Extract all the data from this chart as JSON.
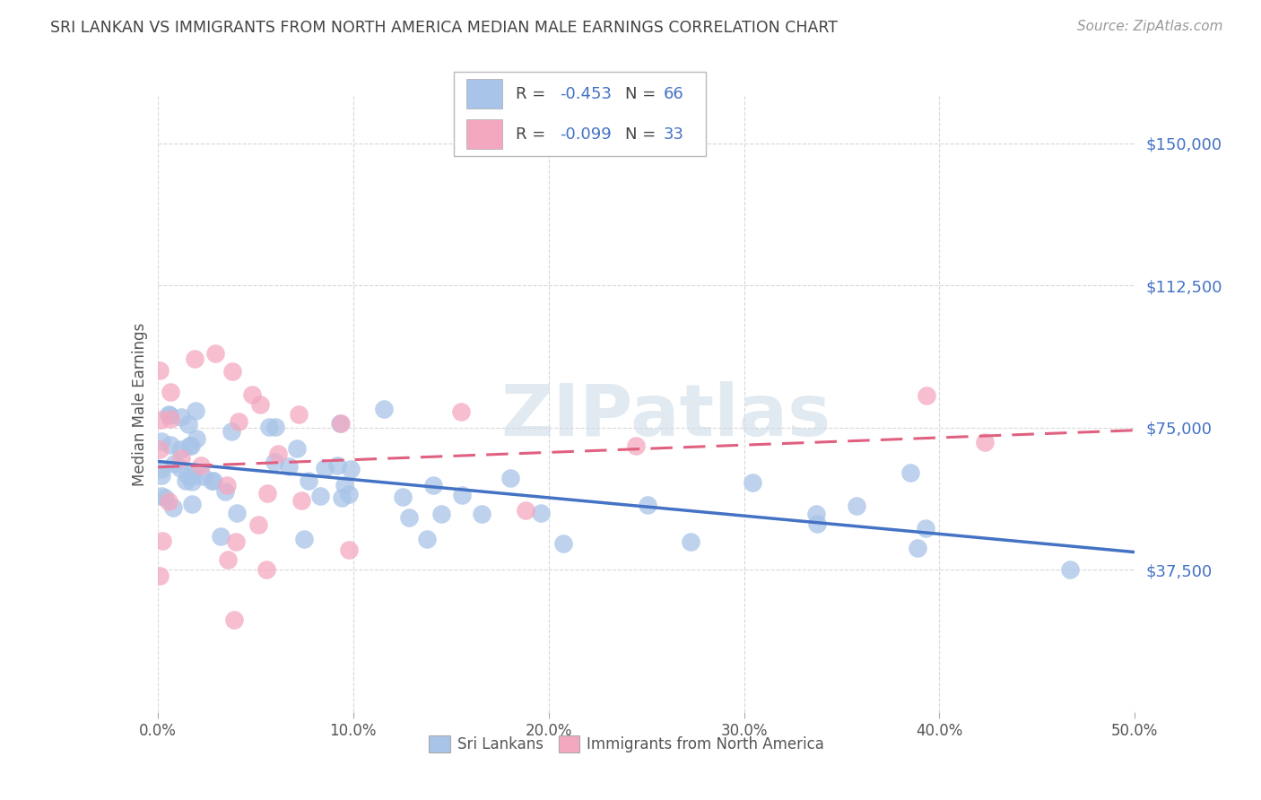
{
  "title": "SRI LANKAN VS IMMIGRANTS FROM NORTH AMERICA MEDIAN MALE EARNINGS CORRELATION CHART",
  "source": "Source: ZipAtlas.com",
  "ylabel": "Median Male Earnings",
  "xlim": [
    0.0,
    0.5
  ],
  "ylim": [
    0,
    162500
  ],
  "yticks": [
    0,
    37500,
    75000,
    112500,
    150000
  ],
  "ytick_labels": [
    "",
    "$37,500",
    "$75,000",
    "$112,500",
    "$150,000"
  ],
  "xticks": [
    0.0,
    0.1,
    0.2,
    0.3,
    0.4,
    0.5
  ],
  "xtick_labels": [
    "0.0%",
    "10.0%",
    "20.0%",
    "30.0%",
    "40.0%",
    "50.0%"
  ],
  "legend_labels": [
    "Sri Lankans",
    "Immigrants from North America"
  ],
  "blue_color": "#a8c4e8",
  "pink_color": "#f4a8c0",
  "blue_line_color": "#4472c4",
  "pink_line_color": "#e06080",
  "R_blue": -0.453,
  "N_blue": 66,
  "R_pink": -0.099,
  "N_pink": 33,
  "label_color": "#4472c4",
  "grid_color": "#d8d8d8",
  "title_color": "#444444",
  "source_color": "#999999",
  "watermark_color": "#d0dce8"
}
